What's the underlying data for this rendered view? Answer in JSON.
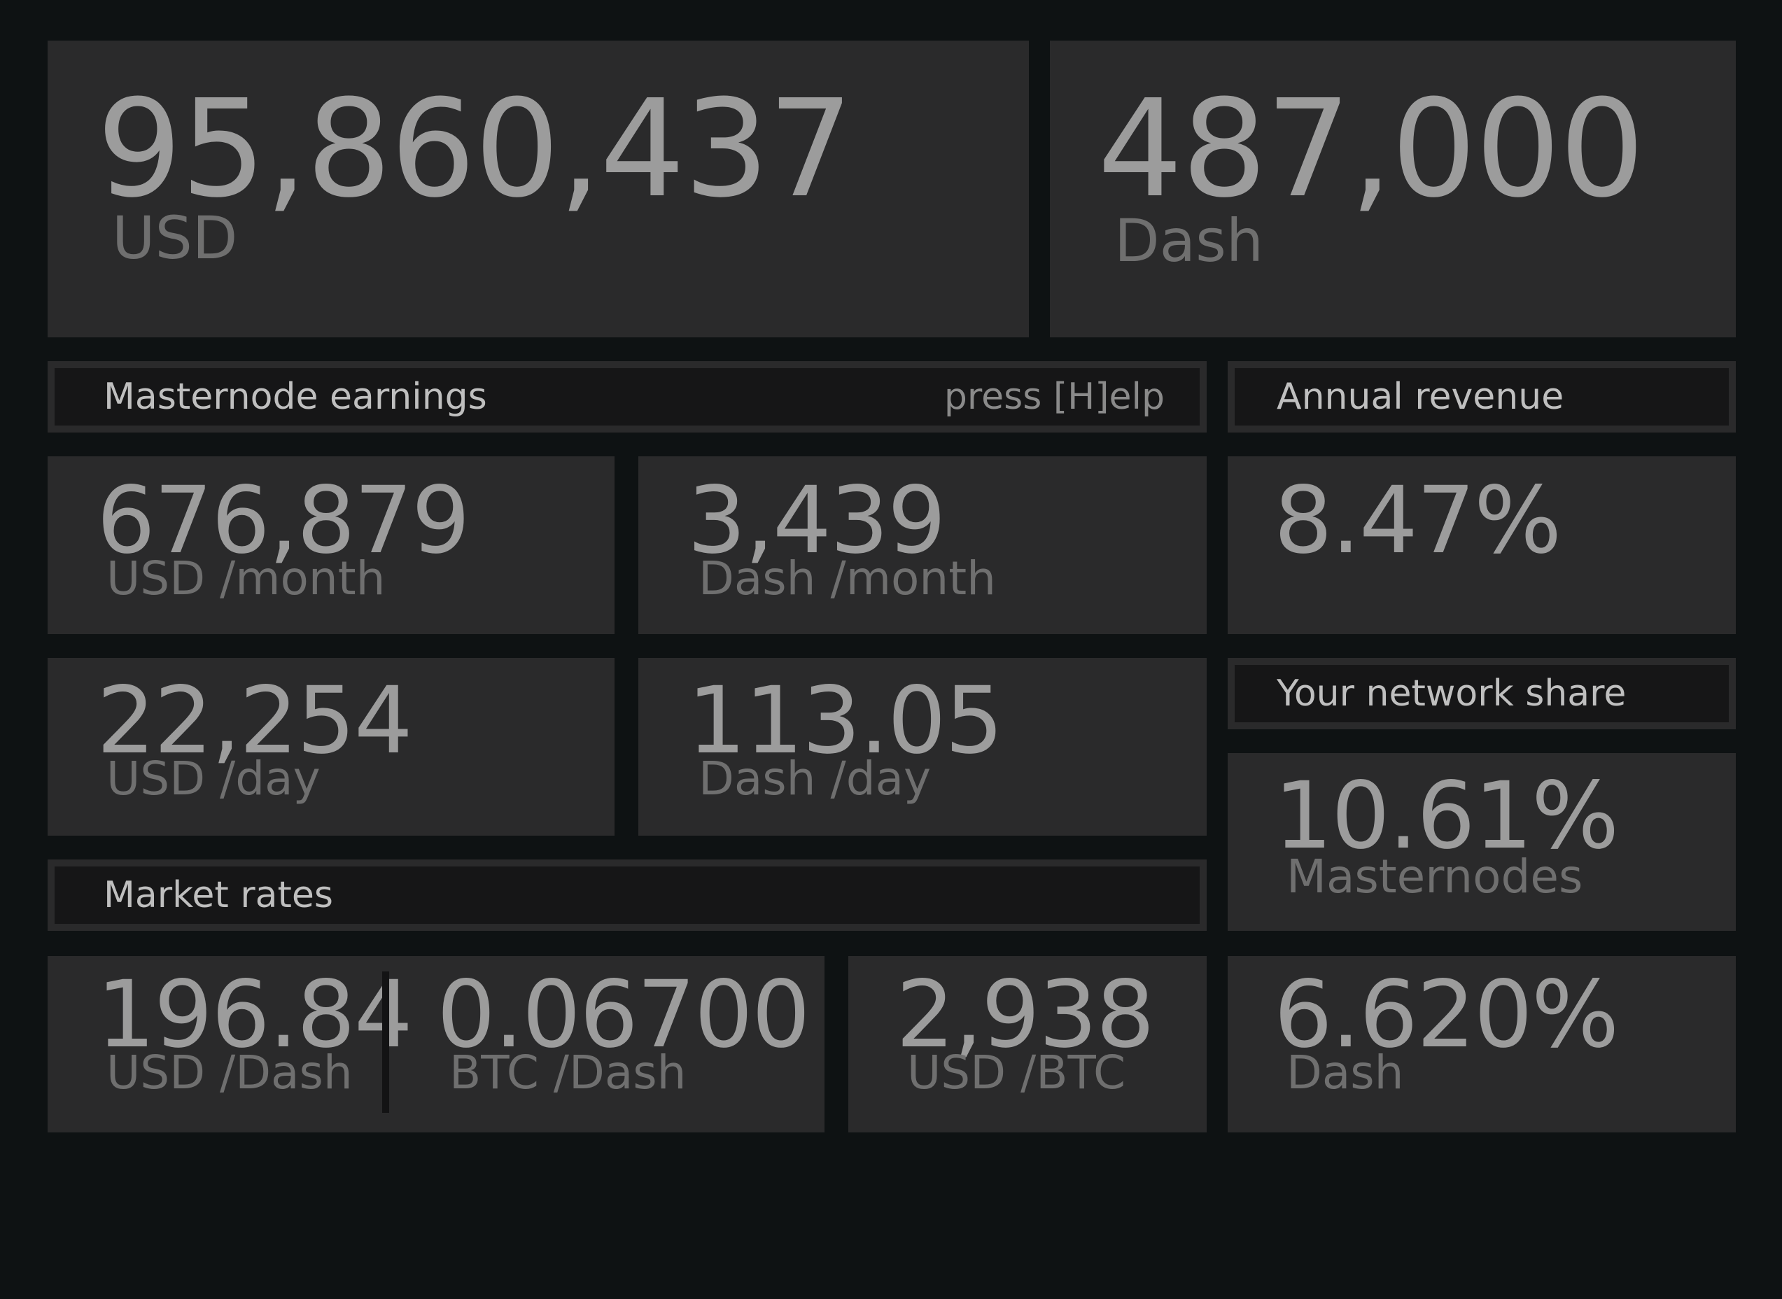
{
  "totals": {
    "usd_value": "95,860,437",
    "usd_unit": "USD",
    "dash_value": "487,000",
    "dash_unit": "Dash"
  },
  "earnings": {
    "title": "Masternode earnings",
    "help_hint": "press [H]elp",
    "usd_month_value": "676,879",
    "usd_month_unit": "USD /month",
    "dash_month_value": "3,439",
    "dash_month_unit": "Dash /month",
    "usd_day_value": "22,254",
    "usd_day_unit": "USD /day",
    "dash_day_value": "113.05",
    "dash_day_unit": "Dash /day"
  },
  "annual": {
    "title": "Annual revenue",
    "value": "8.47%"
  },
  "network_share": {
    "title": "Your network share",
    "masternodes_value": "10.61%",
    "masternodes_unit": "Masternodes",
    "dash_value": "6.620%",
    "dash_unit": "Dash"
  },
  "market": {
    "title": "Market rates",
    "usd_dash_value": "196.84",
    "usd_dash_unit": "USD /Dash",
    "btc_dash_value": "0.06700",
    "btc_dash_unit": "BTC /Dash",
    "usd_btc_value": "2,938",
    "usd_btc_unit": "USD /BTC"
  }
}
